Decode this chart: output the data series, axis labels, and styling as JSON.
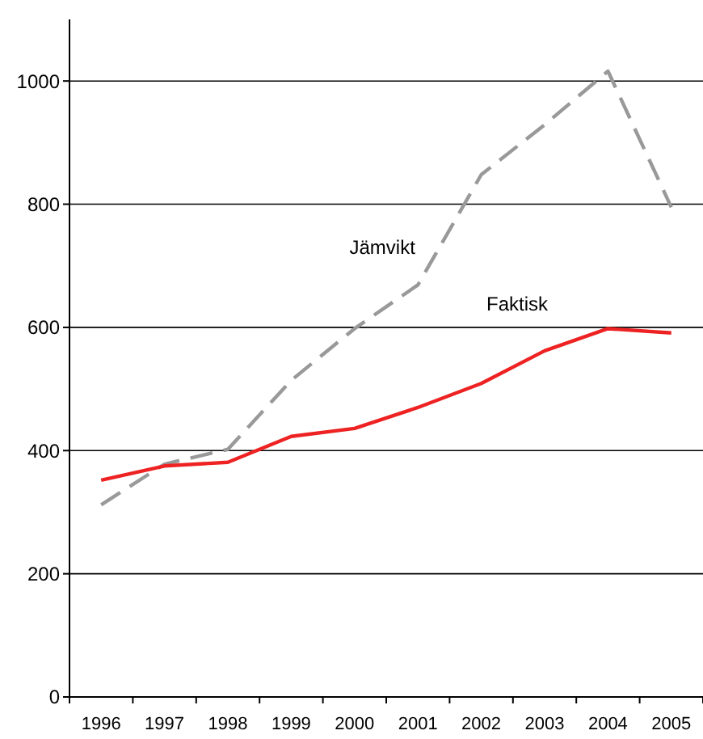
{
  "chart_data": {
    "type": "line",
    "categories": [
      "1996",
      "1997",
      "1998",
      "1999",
      "2000",
      "2001",
      "2002",
      "2003",
      "2004",
      "2005"
    ],
    "series": [
      {
        "name": "Jämvikt",
        "color": "#999999",
        "line_style": "dashed",
        "values": [
          312,
          378,
          402,
          514,
          598,
          669,
          848,
          929,
          1016,
          795
        ]
      },
      {
        "name": "Faktisk",
        "color": "#ee2222",
        "line_style": "solid",
        "values": [
          352,
          375,
          381,
          423,
          436,
          470,
          509,
          562,
          598,
          591
        ]
      }
    ],
    "ylim": [
      0,
      1100
    ],
    "yticks": [
      0,
      200,
      400,
      600,
      800,
      1000
    ],
    "grid": "y"
  }
}
